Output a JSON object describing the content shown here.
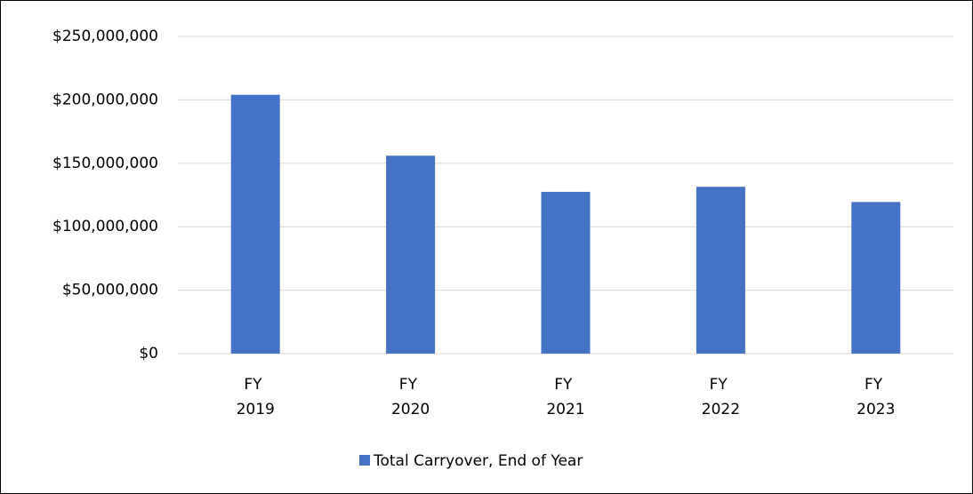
{
  "chart_data": {
    "type": "bar",
    "categories": [
      "FY 2019",
      "FY 2020",
      "FY 2021",
      "FY 2022",
      "FY 2023"
    ],
    "series": [
      {
        "name": "Total Carryover, End of Year",
        "color": "#4472c4",
        "values": [
          204000000,
          156000000,
          127500000,
          131500000,
          119500000
        ]
      }
    ],
    "ylim": [
      0,
      250000000
    ],
    "yticks": [
      {
        "value": 0,
        "label": "$0"
      },
      {
        "value": 50000000,
        "label": "$50,000,000"
      },
      {
        "value": 100000000,
        "label": "$100,000,000"
      },
      {
        "value": 150000000,
        "label": "$150,000,000"
      },
      {
        "value": 200000000,
        "label": "$200,000,000"
      },
      {
        "value": 250000000,
        "label": "$250,000,000"
      }
    ],
    "grid": true,
    "legend": "bottom"
  }
}
